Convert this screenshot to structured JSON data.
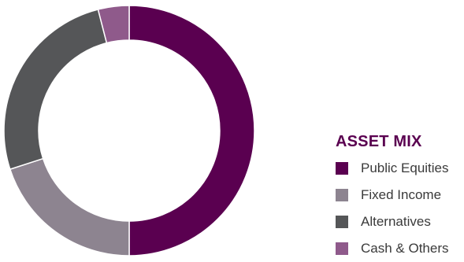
{
  "chart_data": {
    "type": "pie",
    "style": "donut",
    "legend_title": "ASSET MIX",
    "legend_position": "right",
    "series": [
      {
        "name": "Public Equities",
        "value": 50,
        "color": "#5a0050"
      },
      {
        "name": "Fixed Income",
        "value": 20,
        "color": "#8d8490"
      },
      {
        "name": "Alternatives",
        "value": 26,
        "color": "#555658"
      },
      {
        "name": "Cash & Others",
        "value": 4,
        "color": "#8f5a8b"
      }
    ]
  }
}
